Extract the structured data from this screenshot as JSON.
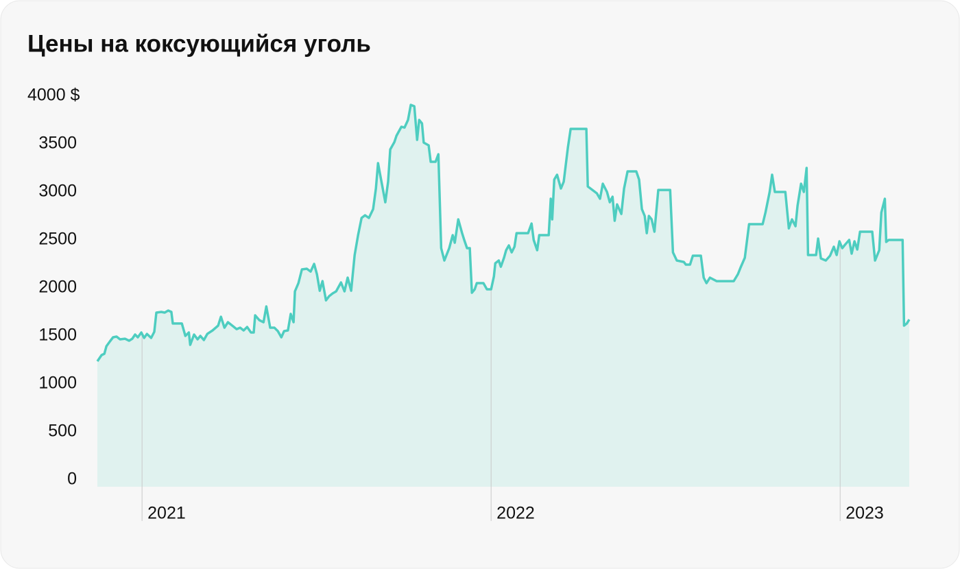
{
  "chart_data": {
    "type": "line",
    "title": "Цены на коксующийся уголь",
    "x": [
      2020.872,
      2020.884,
      2020.892,
      2020.898,
      2020.908,
      2020.917,
      2020.927,
      2020.937,
      2020.951,
      2020.963,
      2020.972,
      2020.98,
      2020.988,
      2020.998,
      2021.006,
      2021.014,
      2021.026,
      2021.035,
      2021.041,
      2021.055,
      2021.065,
      2021.075,
      2021.084,
      2021.088,
      2021.114,
      2021.124,
      2021.134,
      2021.138,
      2021.149,
      2021.159,
      2021.167,
      2021.177,
      2021.187,
      2021.202,
      2021.218,
      2021.226,
      2021.236,
      2021.246,
      2021.261,
      2021.271,
      2021.281,
      2021.291,
      2021.301,
      2021.312,
      2021.32,
      2021.324,
      2021.336,
      2021.348,
      2021.356,
      2021.367,
      2021.379,
      2021.389,
      2021.399,
      2021.407,
      2021.418,
      2021.426,
      2021.434,
      2021.438,
      2021.448,
      2021.458,
      2021.472,
      2021.483,
      2021.493,
      2021.501,
      2021.509,
      2021.517,
      2021.527,
      2021.536,
      2021.546,
      2021.556,
      2021.57,
      2021.58,
      2021.589,
      2021.599,
      2021.609,
      2021.619,
      2021.629,
      2021.639,
      2021.65,
      2021.662,
      2021.67,
      2021.676,
      2021.686,
      2021.697,
      2021.705,
      2021.711,
      2021.723,
      2021.729,
      2021.743,
      2021.752,
      2021.762,
      2021.77,
      2021.78,
      2021.788,
      2021.794,
      2021.802,
      2021.807,
      2021.821,
      2021.827,
      2021.841,
      2021.849,
      2021.857,
      2021.866,
      2021.88,
      2021.89,
      2021.896,
      2021.906,
      2021.917,
      2021.923,
      2021.931,
      2021.939,
      2021.945,
      2021.953,
      2021.959,
      2021.978,
      2021.988,
      2022.0,
      2022.008,
      2022.012,
      2022.022,
      2022.028,
      2022.037,
      2022.043,
      2022.051,
      2022.059,
      2022.067,
      2022.073,
      2022.106,
      2022.116,
      2022.122,
      2022.132,
      2022.138,
      2022.165,
      2022.171,
      2022.175,
      2022.181,
      2022.189,
      2022.2,
      2022.208,
      2022.22,
      2022.228,
      2022.273,
      2022.277,
      2022.303,
      2022.312,
      2022.32,
      2022.332,
      2022.34,
      2022.348,
      2022.354,
      2022.361,
      2022.373,
      2022.381,
      2022.391,
      2022.416,
      2022.424,
      2022.432,
      2022.44,
      2022.446,
      2022.452,
      2022.46,
      2022.468,
      2022.479,
      2022.513,
      2022.521,
      2022.532,
      2022.552,
      2022.558,
      2022.57,
      2022.578,
      2022.601,
      2022.609,
      2022.617,
      2022.627,
      2022.646,
      2022.656,
      2022.695,
      2022.707,
      2022.715,
      2022.727,
      2022.739,
      2022.778,
      2022.786,
      2022.798,
      2022.805,
      2022.813,
      2022.843,
      2022.853,
      2022.862,
      2022.872,
      2022.878,
      2022.888,
      2022.896,
      2022.904,
      2022.908,
      2022.931,
      2022.937,
      2022.945,
      2022.959,
      2022.971,
      2022.982,
      2022.99,
      2022.998,
      2023.006,
      2023.014,
      2023.026,
      2023.033,
      2023.041,
      2023.049,
      2023.057,
      2023.092,
      2023.1,
      2023.112,
      2023.118,
      2023.128,
      2023.132,
      2023.139,
      2023.179,
      2023.183,
      2023.191,
      2023.198
    ],
    "series": [
      {
        "color": "#4ecdc0",
        "fill": "#e0f2ef",
        "values": [
          1236,
          1300,
          1314,
          1393,
          1443,
          1486,
          1493,
          1464,
          1471,
          1450,
          1471,
          1514,
          1486,
          1536,
          1479,
          1521,
          1479,
          1543,
          1743,
          1750,
          1743,
          1764,
          1750,
          1629,
          1629,
          1500,
          1536,
          1407,
          1514,
          1464,
          1500,
          1457,
          1521,
          1557,
          1607,
          1700,
          1586,
          1643,
          1600,
          1571,
          1586,
          1557,
          1593,
          1536,
          1536,
          1714,
          1664,
          1643,
          1807,
          1586,
          1586,
          1550,
          1486,
          1550,
          1557,
          1729,
          1643,
          1964,
          2050,
          2193,
          2200,
          2171,
          2250,
          2143,
          1971,
          2071,
          1871,
          1914,
          1943,
          1964,
          2057,
          1964,
          2107,
          1971,
          2343,
          2550,
          2729,
          2757,
          2729,
          2821,
          3036,
          3300,
          3107,
          2893,
          3107,
          3443,
          3521,
          3586,
          3679,
          3671,
          3750,
          3907,
          3893,
          3543,
          3750,
          3714,
          3514,
          3486,
          3314,
          3314,
          3393,
          2414,
          2286,
          2414,
          2550,
          2471,
          2714,
          2571,
          2500,
          2414,
          2414,
          1950,
          1986,
          2050,
          2050,
          1986,
          1986,
          2121,
          2257,
          2286,
          2221,
          2314,
          2393,
          2443,
          2371,
          2429,
          2571,
          2571,
          2671,
          2500,
          2393,
          2550,
          2550,
          2929,
          2714,
          3129,
          3179,
          3036,
          3107,
          3464,
          3657,
          3657,
          3057,
          2986,
          2929,
          3086,
          3000,
          2893,
          2950,
          2700,
          2871,
          2771,
          3036,
          3214,
          3214,
          3129,
          2821,
          2750,
          2571,
          2750,
          2714,
          2586,
          3021,
          3021,
          2371,
          2286,
          2271,
          2243,
          2243,
          2336,
          2336,
          2107,
          2050,
          2107,
          2071,
          2071,
          2071,
          2143,
          2214,
          2314,
          2664,
          2664,
          2786,
          3000,
          3179,
          3000,
          3000,
          2621,
          2714,
          2643,
          2857,
          3086,
          3000,
          3250,
          2343,
          2343,
          2514,
          2307,
          2286,
          2336,
          2429,
          2343,
          2486,
          2414,
          2450,
          2500,
          2357,
          2486,
          2400,
          2586,
          2586,
          2286,
          2393,
          2786,
          2929,
          2479,
          2500,
          2500,
          1607,
          1629,
          1671
        ]
      }
    ],
    "xlim": [
      2020.872,
      2023.198
    ],
    "xticks": [
      2021,
      2022,
      2023
    ],
    "ylim": [
      0,
      4000
    ],
    "yticks": [
      0,
      500,
      1000,
      1500,
      2000,
      2500,
      3000,
      3500,
      {
        "value": 4000,
        "label": "4000 $"
      }
    ]
  }
}
